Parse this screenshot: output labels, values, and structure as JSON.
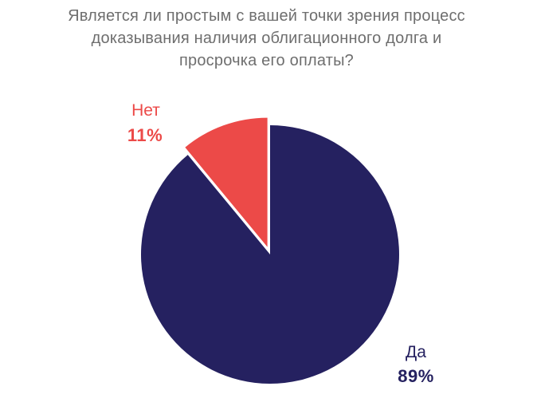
{
  "chart_data": {
    "type": "pie",
    "title_lines": [
      "Является ли простым с вашей точки зрения процесс",
      "доказывания наличия облигационного долга и",
      "просрочка его оплаты?"
    ],
    "slices": [
      {
        "label": "Да",
        "value": 89,
        "value_label": "89%",
        "color": "#252160",
        "exploded": false
      },
      {
        "label": "Нет",
        "value": 11,
        "value_label": "11%",
        "color": "#ec4a48",
        "exploded": true
      }
    ],
    "legend": "none"
  }
}
